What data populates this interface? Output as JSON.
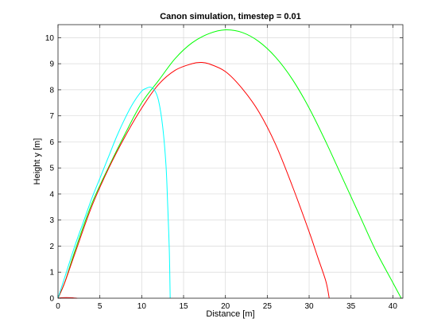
{
  "chart_data": {
    "type": "line",
    "title": "Canon simulation, timestep = 0.01",
    "xlabel": "Distance [m]",
    "ylabel": "Height y [m]",
    "xlim": [
      0,
      41.2
    ],
    "ylim": [
      0,
      10.5
    ],
    "xticks": [
      0,
      5,
      10,
      15,
      20,
      25,
      30,
      35,
      40
    ],
    "yticks": [
      0,
      1,
      2,
      3,
      4,
      5,
      6,
      7,
      8,
      9,
      10
    ],
    "grid": true,
    "legend": "none",
    "series": [
      {
        "color": "#00ff00",
        "x": [
          0,
          0.8,
          2,
          4,
          6,
          8,
          10,
          12,
          14,
          16,
          18,
          20,
          22,
          24,
          26,
          28,
          30,
          32,
          34,
          36,
          38,
          40,
          41
        ],
        "y": [
          0,
          0.6,
          1.8,
          3.6,
          5.0,
          6.3,
          7.5,
          8.35,
          9.2,
          9.8,
          10.15,
          10.3,
          10.2,
          9.85,
          9.25,
          8.4,
          7.3,
          6.0,
          4.6,
          3.2,
          1.8,
          0.6,
          0
        ]
      },
      {
        "color": "#ff0000",
        "x": [
          0,
          0.8,
          2,
          4,
          6,
          8,
          10,
          12,
          14,
          16,
          17,
          18,
          20,
          22,
          24,
          26,
          28,
          30,
          31,
          32,
          32.4
        ],
        "y": [
          0,
          0.6,
          1.7,
          3.5,
          4.95,
          6.2,
          7.3,
          8.2,
          8.75,
          9.0,
          9.05,
          9.0,
          8.7,
          8.05,
          7.15,
          5.9,
          4.3,
          2.55,
          1.6,
          0.65,
          0
        ]
      },
      {
        "color": "#00ffff",
        "x": [
          0,
          1,
          2,
          3,
          4,
          5,
          6,
          7,
          8,
          9,
          10,
          10.5,
          11,
          11.5,
          12,
          12.5,
          12.9,
          13.1,
          13.3,
          13.4
        ],
        "y": [
          0,
          1.0,
          2.0,
          2.9,
          3.8,
          4.6,
          5.4,
          6.2,
          6.9,
          7.5,
          7.95,
          8.05,
          8.1,
          8.0,
          7.6,
          6.6,
          5.1,
          3.6,
          1.8,
          0
        ]
      },
      {
        "color": "#ff0000",
        "x": [
          0,
          0.5,
          1.5,
          2.3
        ],
        "y": [
          0,
          0.02,
          0.02,
          0
        ]
      }
    ]
  }
}
